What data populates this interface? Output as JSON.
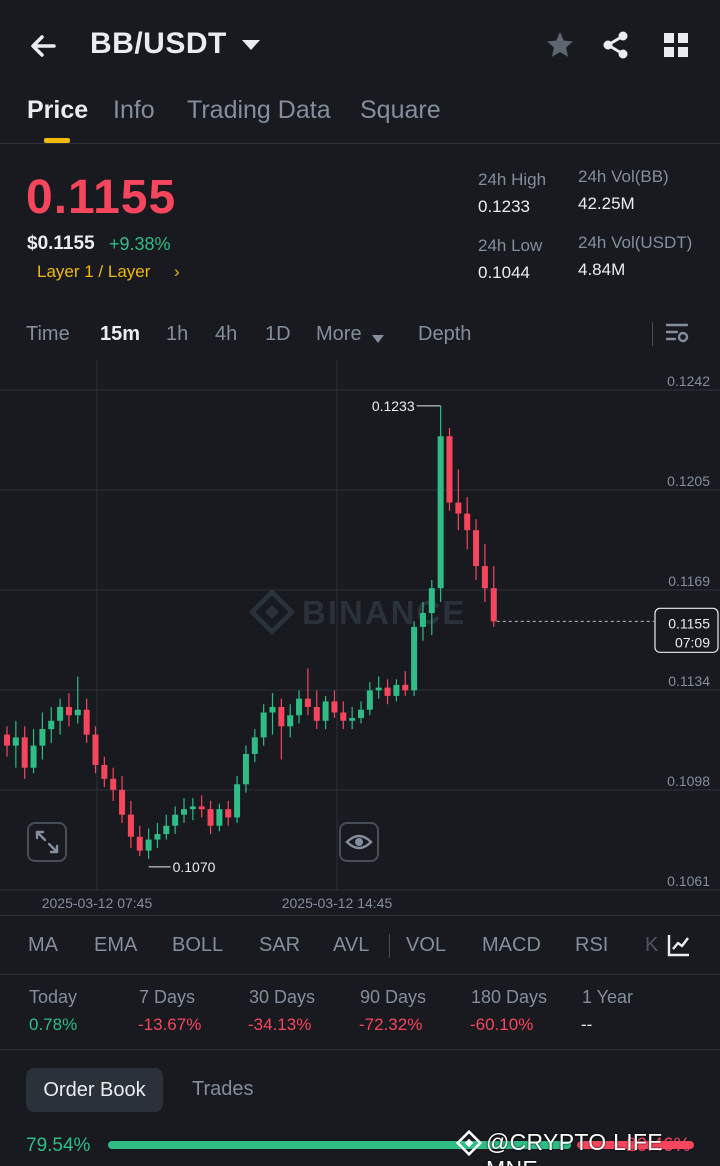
{
  "header": {
    "title": "BB/USDT"
  },
  "tabs": [
    {
      "label": "Price",
      "active": true
    },
    {
      "label": "Info"
    },
    {
      "label": "Trading Data"
    },
    {
      "label": "Square"
    }
  ],
  "ticker": {
    "last_price": "0.1155",
    "usd_price": "$0.1155",
    "change_pct": "+9.38%",
    "category": "Layer 1 / Layer",
    "category_arrow": "›",
    "high_label": "24h High",
    "high_value": "0.1233",
    "low_label": "24h Low",
    "low_value": "0.1044",
    "vol_base_label": "24h Vol(BB)",
    "vol_base_value": "42.25M",
    "vol_quote_label": "24h Vol(USDT)",
    "vol_quote_value": "4.84M"
  },
  "intervals": [
    "Time",
    "15m",
    "1h",
    "4h",
    "1D",
    "More",
    "Depth"
  ],
  "active_interval": "15m",
  "chart_data": {
    "type": "candlestick",
    "y_ticks": [
      "0.1242",
      "0.1205",
      "0.1169",
      "0.1134",
      "0.1098",
      "0.1061"
    ],
    "x_ticks": [
      "2025-03-12 07:45",
      "2025-03-12 14:45"
    ],
    "ylim": [
      0.1061,
      0.1242
    ],
    "high_marker": "0.1233",
    "low_marker": "0.1070",
    "current_price": "0.1155",
    "countdown": "07:09",
    "watermark": "BINANCE",
    "colors": {
      "up": "#2ebd85",
      "down": "#f6465d"
    },
    "candles": [
      [
        0.1114,
        0.1117,
        0.1106,
        0.111
      ],
      [
        0.111,
        0.1119,
        0.1102,
        0.1113
      ],
      [
        0.1113,
        0.1117,
        0.1098,
        0.1102
      ],
      [
        0.1102,
        0.1116,
        0.11,
        0.111
      ],
      [
        0.111,
        0.1122,
        0.1105,
        0.1116
      ],
      [
        0.1116,
        0.1124,
        0.1111,
        0.1119
      ],
      [
        0.1119,
        0.1127,
        0.1114,
        0.1124
      ],
      [
        0.1124,
        0.1129,
        0.1117,
        0.1121
      ],
      [
        0.1121,
        0.1135,
        0.1118,
        0.1123
      ],
      [
        0.1123,
        0.1127,
        0.1111,
        0.1114
      ],
      [
        0.1114,
        0.1117,
        0.11,
        0.1103
      ],
      [
        0.1103,
        0.1106,
        0.1095,
        0.1098
      ],
      [
        0.1098,
        0.1102,
        0.109,
        0.1094
      ],
      [
        0.1094,
        0.1099,
        0.1082,
        0.1085
      ],
      [
        0.1085,
        0.109,
        0.1073,
        0.1077
      ],
      [
        0.1077,
        0.1081,
        0.107,
        0.1072
      ],
      [
        0.1072,
        0.108,
        0.1069,
        0.1076
      ],
      [
        0.1076,
        0.1082,
        0.1073,
        0.1078
      ],
      [
        0.1078,
        0.1085,
        0.1076,
        0.1081
      ],
      [
        0.1081,
        0.1088,
        0.1078,
        0.1085
      ],
      [
        0.1085,
        0.1091,
        0.1082,
        0.1087
      ],
      [
        0.1087,
        0.1091,
        0.1083,
        0.1088
      ],
      [
        0.1088,
        0.1092,
        0.1084,
        0.1087
      ],
      [
        0.1087,
        0.109,
        0.1078,
        0.1081
      ],
      [
        0.1081,
        0.1089,
        0.1079,
        0.1087
      ],
      [
        0.1087,
        0.109,
        0.1081,
        0.1084
      ],
      [
        0.1084,
        0.1099,
        0.1082,
        0.1096
      ],
      [
        0.1096,
        0.111,
        0.1093,
        0.1107
      ],
      [
        0.1107,
        0.1116,
        0.1104,
        0.1113
      ],
      [
        0.1113,
        0.1125,
        0.111,
        0.1122
      ],
      [
        0.1122,
        0.1129,
        0.1114,
        0.1124
      ],
      [
        0.1124,
        0.1127,
        0.1105,
        0.1117
      ],
      [
        0.1117,
        0.1125,
        0.1113,
        0.1121
      ],
      [
        0.1121,
        0.113,
        0.1118,
        0.1127
      ],
      [
        0.1127,
        0.1138,
        0.1121,
        0.1124
      ],
      [
        0.1124,
        0.113,
        0.1116,
        0.1119
      ],
      [
        0.1119,
        0.1128,
        0.1116,
        0.1126
      ],
      [
        0.1126,
        0.113,
        0.112,
        0.1122
      ],
      [
        0.1122,
        0.1126,
        0.1116,
        0.1119
      ],
      [
        0.1119,
        0.1124,
        0.1116,
        0.112
      ],
      [
        0.112,
        0.1126,
        0.1118,
        0.1123
      ],
      [
        0.1123,
        0.1133,
        0.1121,
        0.113
      ],
      [
        0.113,
        0.1135,
        0.1127,
        0.1131
      ],
      [
        0.1131,
        0.1134,
        0.1125,
        0.1128
      ],
      [
        0.1128,
        0.1134,
        0.1126,
        0.1132
      ],
      [
        0.1132,
        0.1137,
        0.1128,
        0.113
      ],
      [
        0.113,
        0.1155,
        0.1128,
        0.1153
      ],
      [
        0.1153,
        0.1162,
        0.1148,
        0.1158
      ],
      [
        0.1158,
        0.117,
        0.115,
        0.1167
      ],
      [
        0.1167,
        0.1233,
        0.1162,
        0.1222
      ],
      [
        0.1222,
        0.1225,
        0.1195,
        0.1198
      ],
      [
        0.1198,
        0.121,
        0.1188,
        0.1194
      ],
      [
        0.1194,
        0.12,
        0.1181,
        0.1188
      ],
      [
        0.1188,
        0.1192,
        0.117,
        0.1175
      ],
      [
        0.1175,
        0.1183,
        0.1162,
        0.1167
      ],
      [
        0.1167,
        0.1175,
        0.1153,
        0.1155
      ]
    ]
  },
  "chart_buttons": {
    "expand": "expand-icon",
    "eye": "eye-icon"
  },
  "indicators": [
    "MA",
    "EMA",
    "BOLL",
    "SAR",
    "AVL",
    "VOL",
    "MACD",
    "RSI",
    "K"
  ],
  "performance": [
    {
      "label": "Today",
      "value": "0.78%",
      "trend": "up"
    },
    {
      "label": "7 Days",
      "value": "-13.67%",
      "trend": "down"
    },
    {
      "label": "30 Days",
      "value": "-34.13%",
      "trend": "down"
    },
    {
      "label": "90 Days",
      "value": "-72.32%",
      "trend": "down"
    },
    {
      "label": "180 Days",
      "value": "-60.10%",
      "trend": "down"
    },
    {
      "label": "1 Year",
      "value": "--",
      "trend": "none"
    }
  ],
  "orderbook": {
    "tab_orderbook": "Order Book",
    "tab_trades": "Trades",
    "buy_pct": "79.54%",
    "sell_pct": "20.46%",
    "buy_fraction": 0.7954
  },
  "watermark_overlay": "@CRYPTO LIFE MNE"
}
